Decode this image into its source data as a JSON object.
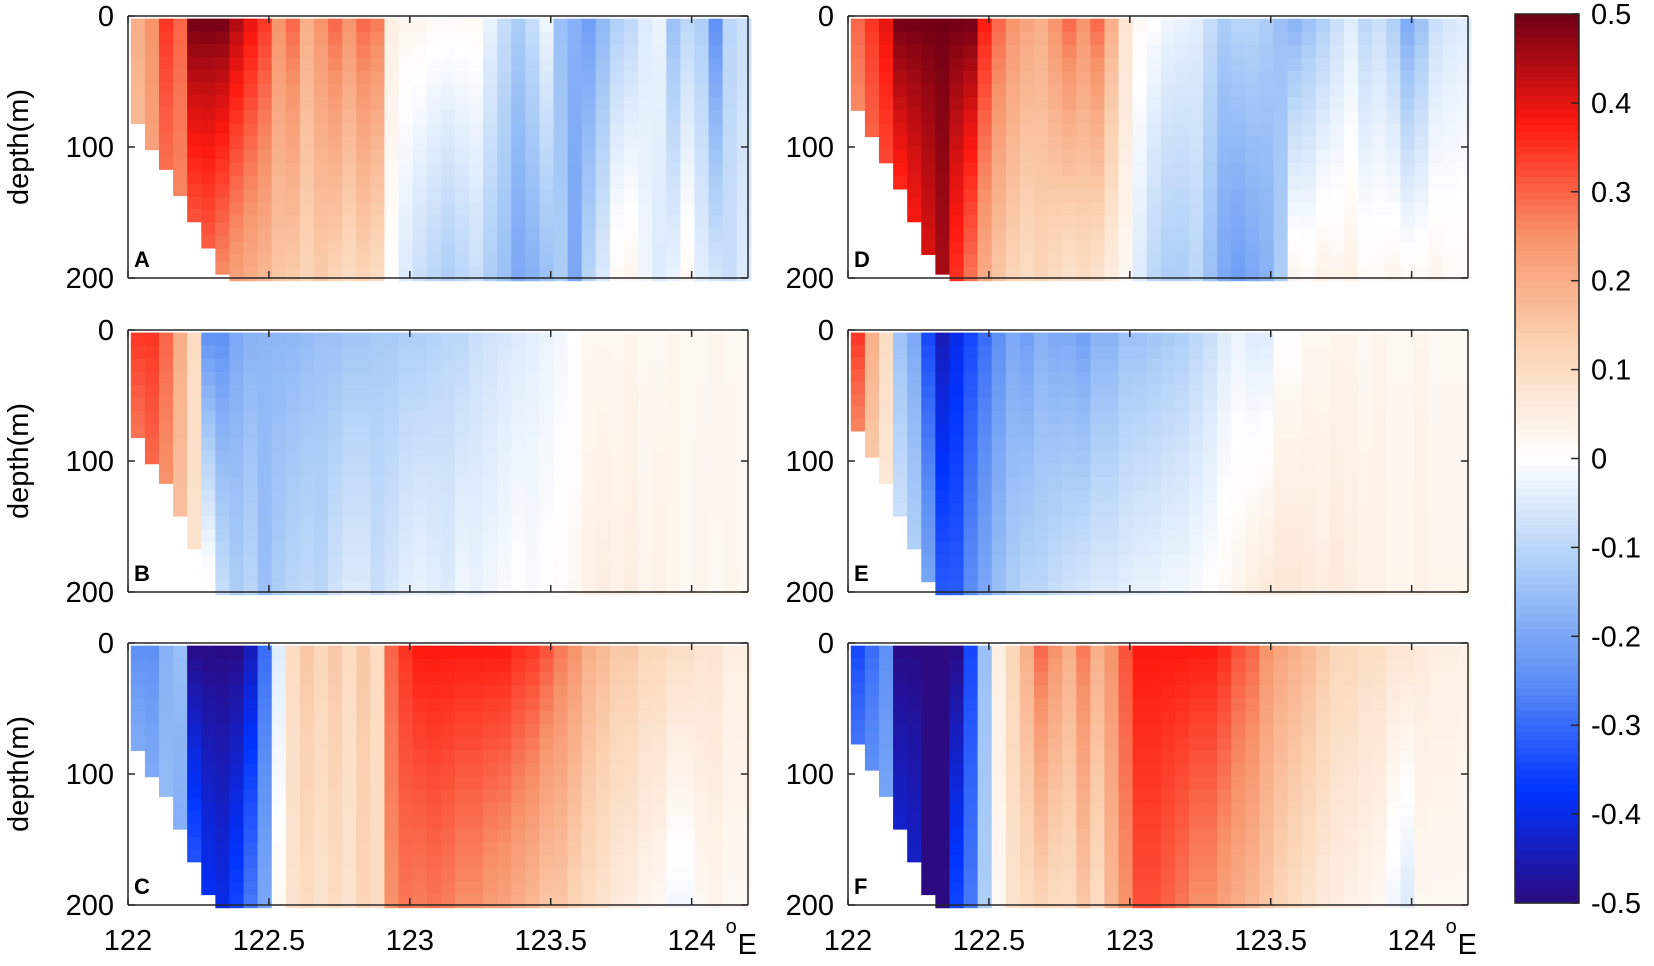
{
  "chart_data": {
    "type": "heatmap",
    "colormap": {
      "stops": [
        "#2b0a82",
        "#0033ff",
        "#5c8ff5",
        "#a9ccf7",
        "#ffffff",
        "#fbd4b4",
        "#f7936a",
        "#ff1a10",
        "#6e0014"
      ],
      "range": [
        -0.5,
        0.5
      ],
      "ticks": [
        0.5,
        0.4,
        0.3,
        0.2,
        0.1,
        0,
        -0.1,
        -0.2,
        -0.3,
        -0.4,
        -0.5
      ],
      "tick_labels": [
        "0.5",
        "0.4",
        "0.3",
        "0.2",
        "0.1",
        "0",
        "-0.1",
        "-0.2",
        "-0.3",
        "-0.4",
        "-0.5"
      ]
    },
    "x_ticks": [
      122,
      122.5,
      123,
      123.5,
      124
    ],
    "x_tick_labels": [
      "122",
      "122.5",
      "123",
      "123.5",
      "124"
    ],
    "x_unit_sup": "o",
    "x_unit": "E",
    "y_ticks": [
      0,
      100,
      200
    ],
    "y_tick_labels": [
      "0",
      "100",
      "200"
    ],
    "ylabel": "depth(m)",
    "xlim": [
      122,
      124.2
    ],
    "ylim": [
      0,
      200
    ],
    "panels": [
      {
        "label": "A",
        "lons": [
          122,
          122.05,
          122.1,
          122.15,
          122.2,
          122.25,
          122.3,
          122.35,
          122.4,
          122.45,
          122.5,
          122.55,
          122.6,
          122.65,
          122.7,
          122.75,
          122.8,
          122.85,
          122.9,
          122.95,
          123,
          123.05,
          123.1,
          123.15,
          123.2,
          123.25,
          123.3,
          123.35,
          123.4,
          123.45,
          123.5,
          123.55,
          123.6,
          123.65,
          123.7,
          123.75,
          123.8,
          123.85,
          123.9,
          123.95,
          124,
          124.05,
          124.1,
          124.15
        ],
        "top": [
          0.2,
          0.25,
          0.35,
          0.3,
          0.5,
          0.5,
          0.5,
          0.45,
          0.4,
          0.35,
          0.25,
          0.3,
          0.2,
          0.25,
          0.3,
          0.25,
          0.3,
          0.28,
          0.05,
          0.03,
          0.03,
          0.02,
          0.02,
          0.02,
          0.02,
          -0.03,
          -0.08,
          -0.12,
          -0.08,
          -0.02,
          -0.15,
          -0.18,
          -0.22,
          -0.17,
          -0.12,
          -0.1,
          -0.05,
          -0.03,
          -0.15,
          -0.1,
          -0.12,
          -0.25,
          -0.1,
          -0.08
        ],
        "bottom": [
          0.15,
          0.2,
          0.25,
          0.25,
          0.27,
          0.28,
          0.25,
          0.22,
          0.2,
          0.18,
          0.15,
          0.14,
          0.12,
          0.14,
          0.12,
          0.1,
          0.12,
          0.1,
          0,
          -0.05,
          -0.08,
          -0.1,
          -0.12,
          -0.1,
          -0.08,
          -0.12,
          -0.15,
          -0.2,
          -0.18,
          -0.15,
          -0.12,
          -0.2,
          -0.1,
          -0.05,
          0.02,
          0.03,
          -0.02,
          -0.05,
          -0.03,
          0.02,
          -0.04,
          -0.06,
          -0.08,
          -0.05
        ],
        "max_depth": [
          80,
          100,
          115,
          135,
          155,
          175,
          195,
          200,
          200,
          200,
          200,
          200,
          200,
          200,
          200,
          200,
          200,
          200,
          200,
          200,
          200,
          200,
          200,
          200,
          200,
          200,
          200,
          200,
          200,
          200,
          200,
          200,
          200,
          200,
          200,
          200,
          200,
          200,
          200,
          200,
          200,
          200,
          200,
          200
        ]
      },
      {
        "label": "B",
        "lons": [
          122,
          122.05,
          122.1,
          122.15,
          122.2,
          122.25,
          122.3,
          122.35,
          122.4,
          122.45,
          122.5,
          122.55,
          122.6,
          122.65,
          122.7,
          122.75,
          122.8,
          122.85,
          122.9,
          122.95,
          123,
          123.05,
          123.1,
          123.15,
          123.2,
          123.25,
          123.3,
          123.35,
          123.4,
          123.45,
          123.5,
          123.55,
          123.6,
          123.65,
          123.7,
          123.75,
          123.8,
          123.85,
          123.9,
          123.95,
          124,
          124.05,
          124.1,
          124.15
        ],
        "top": [
          0.35,
          0.35,
          0.3,
          0.2,
          0.1,
          -0.25,
          -0.25,
          -0.2,
          -0.18,
          -0.17,
          -0.17,
          -0.17,
          -0.16,
          -0.15,
          -0.15,
          -0.14,
          -0.14,
          -0.13,
          -0.13,
          -0.12,
          -0.12,
          -0.11,
          -0.1,
          -0.1,
          -0.08,
          -0.07,
          -0.06,
          -0.05,
          -0.04,
          -0.03,
          -0.02,
          0.0,
          0.02,
          0.02,
          0.02,
          0.03,
          0.02,
          0.02,
          0.03,
          0.02,
          0.02,
          0.03,
          0.02,
          0.02
        ],
        "bottom": [
          0.2,
          0.25,
          0.22,
          0.15,
          0.08,
          0.02,
          -0.08,
          -0.12,
          -0.1,
          -0.15,
          -0.12,
          -0.1,
          -0.09,
          -0.1,
          -0.07,
          -0.05,
          -0.05,
          -0.08,
          -0.06,
          -0.04,
          -0.03,
          -0.04,
          -0.05,
          -0.02,
          -0.03,
          -0.02,
          -0.01,
          0.0,
          -0.01,
          0.0,
          0.01,
          0.02,
          0.04,
          0.05,
          0.04,
          0.05,
          0.03,
          0.04,
          0.03,
          0.02,
          0.03,
          0.02,
          0.03,
          0.02
        ],
        "max_depth": [
          80,
          100,
          115,
          140,
          165,
          190,
          200,
          200,
          200,
          200,
          200,
          200,
          200,
          200,
          200,
          200,
          200,
          200,
          200,
          200,
          200,
          200,
          200,
          200,
          200,
          200,
          200,
          200,
          200,
          200,
          200,
          200,
          200,
          200,
          200,
          200,
          200,
          200,
          200,
          200,
          200,
          200,
          200,
          200
        ]
      },
      {
        "label": "C",
        "lons": [
          122,
          122.05,
          122.1,
          122.15,
          122.2,
          122.25,
          122.3,
          122.35,
          122.4,
          122.45,
          122.5,
          122.55,
          122.6,
          122.65,
          122.7,
          122.75,
          122.8,
          122.85,
          122.9,
          122.95,
          123,
          123.05,
          123.1,
          123.15,
          123.2,
          123.25,
          123.3,
          123.35,
          123.4,
          123.45,
          123.5,
          123.55,
          123.6,
          123.65,
          123.7,
          123.75,
          123.8,
          123.85,
          123.9,
          123.95,
          124,
          124.05,
          124.1,
          124.15
        ],
        "top": [
          -0.25,
          -0.25,
          -0.18,
          -0.15,
          -0.5,
          -0.5,
          -0.5,
          -0.5,
          -0.45,
          -0.3,
          -0.05,
          0.1,
          0.15,
          0.12,
          0.15,
          0.1,
          0.15,
          0.1,
          0.3,
          0.35,
          0.38,
          0.38,
          0.38,
          0.38,
          0.38,
          0.38,
          0.38,
          0.36,
          0.35,
          0.32,
          0.28,
          0.25,
          0.2,
          0.18,
          0.15,
          0.15,
          0.12,
          0.12,
          0.1,
          0.1,
          0.08,
          0.08,
          0.05,
          0.05
        ],
        "bottom": [
          -0.12,
          -0.15,
          -0.15,
          -0.2,
          -0.3,
          -0.38,
          -0.4,
          -0.35,
          -0.28,
          -0.2,
          0.02,
          0.08,
          0.1,
          0.08,
          0.1,
          0.08,
          0.12,
          0.1,
          0.25,
          0.28,
          0.27,
          0.28,
          0.27,
          0.25,
          0.25,
          0.23,
          0.22,
          0.2,
          0.18,
          0.15,
          0.15,
          0.12,
          0.1,
          0.08,
          0.06,
          0.05,
          0.03,
          0.02,
          -0.02,
          -0.02,
          0.02,
          0.03,
          0.02,
          0.02
        ],
        "max_depth": [
          80,
          100,
          115,
          140,
          165,
          190,
          200,
          200,
          200,
          200,
          200,
          200,
          200,
          200,
          200,
          200,
          200,
          200,
          200,
          200,
          200,
          200,
          200,
          200,
          200,
          200,
          200,
          200,
          200,
          200,
          200,
          200,
          200,
          200,
          200,
          200,
          200,
          200,
          200,
          200,
          200,
          200,
          200,
          200
        ]
      },
      {
        "label": "D",
        "lons": [
          122,
          122.05,
          122.1,
          122.15,
          122.2,
          122.25,
          122.3,
          122.35,
          122.4,
          122.45,
          122.5,
          122.55,
          122.6,
          122.65,
          122.7,
          122.75,
          122.8,
          122.85,
          122.9,
          122.95,
          123,
          123.05,
          123.1,
          123.15,
          123.2,
          123.25,
          123.3,
          123.35,
          123.4,
          123.45,
          123.5,
          123.55,
          123.6,
          123.65,
          123.7,
          123.75,
          123.8,
          123.85,
          123.9,
          123.95,
          124,
          124.05,
          124.1,
          124.15
        ],
        "top": [
          0.3,
          0.35,
          0.4,
          0.5,
          0.5,
          0.5,
          0.5,
          0.5,
          0.5,
          0.38,
          0.3,
          0.25,
          0.22,
          0.2,
          0.25,
          0.3,
          0.25,
          0.3,
          0.2,
          0.08,
          0.02,
          0.0,
          -0.02,
          -0.03,
          -0.04,
          -0.08,
          -0.12,
          -0.1,
          -0.1,
          -0.12,
          -0.15,
          -0.18,
          -0.15,
          -0.12,
          -0.08,
          -0.05,
          -0.1,
          -0.08,
          -0.12,
          -0.2,
          -0.15,
          -0.08,
          -0.06,
          -0.05
        ],
        "bottom": [
          0.2,
          0.25,
          0.28,
          0.3,
          0.35,
          0.4,
          0.45,
          0.35,
          0.28,
          0.2,
          0.15,
          0.12,
          0.1,
          0.12,
          0.1,
          0.08,
          0.1,
          0.08,
          0.05,
          0.02,
          -0.05,
          -0.1,
          -0.12,
          -0.12,
          -0.1,
          -0.15,
          -0.2,
          -0.22,
          -0.2,
          -0.18,
          -0.12,
          0.03,
          0.02,
          0.04,
          0.03,
          0.04,
          0.02,
          0.02,
          0.03,
          0.02,
          0.02,
          0.03,
          0.02,
          0.02
        ],
        "max_depth": [
          70,
          90,
          110,
          130,
          155,
          180,
          195,
          200,
          200,
          200,
          200,
          200,
          200,
          200,
          200,
          200,
          200,
          200,
          200,
          200,
          200,
          200,
          200,
          200,
          200,
          200,
          200,
          200,
          200,
          200,
          200,
          200,
          200,
          200,
          200,
          200,
          200,
          200,
          200,
          200,
          200,
          200,
          200,
          200
        ]
      },
      {
        "label": "E",
        "lons": [
          122,
          122.05,
          122.1,
          122.15,
          122.2,
          122.25,
          122.3,
          122.35,
          122.4,
          122.45,
          122.5,
          122.55,
          122.6,
          122.65,
          122.7,
          122.75,
          122.8,
          122.85,
          122.9,
          122.95,
          123,
          123.05,
          123.1,
          123.15,
          123.2,
          123.25,
          123.3,
          123.35,
          123.4,
          123.45,
          123.5,
          123.55,
          123.6,
          123.65,
          123.7,
          123.75,
          123.8,
          123.85,
          123.9,
          123.95,
          124,
          124.05,
          124.1,
          124.15
        ],
        "top": [
          0.35,
          0.2,
          0.1,
          -0.15,
          -0.2,
          -0.35,
          -0.45,
          -0.4,
          -0.35,
          -0.3,
          -0.25,
          -0.2,
          -0.22,
          -0.18,
          -0.2,
          -0.2,
          -0.22,
          -0.18,
          -0.18,
          -0.15,
          -0.15,
          -0.14,
          -0.13,
          -0.12,
          -0.1,
          -0.08,
          -0.05,
          -0.03,
          -0.05,
          -0.05,
          0.0,
          0.0,
          0.02,
          0.02,
          0.03,
          0.03,
          0.02,
          0.03,
          0.02,
          0.02,
          0.03,
          0.02,
          0.02,
          0.02
        ],
        "bottom": [
          0.15,
          0.1,
          0.05,
          -0.05,
          -0.1,
          -0.2,
          -0.32,
          -0.32,
          -0.25,
          -0.2,
          -0.15,
          -0.12,
          -0.1,
          -0.1,
          -0.08,
          -0.07,
          -0.06,
          -0.05,
          -0.05,
          -0.04,
          -0.03,
          -0.03,
          -0.02,
          -0.02,
          -0.01,
          0.0,
          0.02,
          0.03,
          0.05,
          0.06,
          0.07,
          0.07,
          0.06,
          0.05,
          0.06,
          0.05,
          0.04,
          0.04,
          0.03,
          0.03,
          0.04,
          0.03,
          0.03,
          0.03
        ],
        "max_depth": [
          75,
          95,
          115,
          140,
          165,
          190,
          200,
          200,
          200,
          200,
          200,
          200,
          200,
          200,
          200,
          200,
          200,
          200,
          200,
          200,
          200,
          200,
          200,
          200,
          200,
          200,
          200,
          200,
          200,
          200,
          200,
          200,
          200,
          200,
          200,
          200,
          200,
          200,
          200,
          200,
          200,
          200,
          200,
          200
        ]
      },
      {
        "label": "F",
        "lons": [
          122,
          122.05,
          122.1,
          122.15,
          122.2,
          122.25,
          122.3,
          122.35,
          122.4,
          122.45,
          122.5,
          122.55,
          122.6,
          122.65,
          122.7,
          122.75,
          122.8,
          122.85,
          122.9,
          122.95,
          123,
          123.05,
          123.1,
          123.15,
          123.2,
          123.25,
          123.3,
          123.35,
          123.4,
          123.45,
          123.5,
          123.55,
          123.6,
          123.65,
          123.7,
          123.75,
          123.8,
          123.85,
          123.9,
          123.95,
          124,
          124.05,
          124.1,
          124.15
        ],
        "top": [
          -0.35,
          -0.3,
          -0.25,
          -0.5,
          -0.5,
          -0.5,
          -0.5,
          -0.5,
          -0.35,
          -0.15,
          0.05,
          0.12,
          0.2,
          0.3,
          0.25,
          0.2,
          0.28,
          0.2,
          0.25,
          0.32,
          0.38,
          0.38,
          0.38,
          0.38,
          0.38,
          0.38,
          0.36,
          0.32,
          0.3,
          0.25,
          0.22,
          0.2,
          0.18,
          0.15,
          0.12,
          0.12,
          0.1,
          0.1,
          0.08,
          0.08,
          0.06,
          0.05,
          0.05,
          0.04
        ],
        "bottom": [
          -0.2,
          -0.2,
          -0.18,
          -0.4,
          -0.42,
          -0.5,
          -0.5,
          -0.35,
          -0.28,
          -0.12,
          0.02,
          0.08,
          0.1,
          0.12,
          0.1,
          0.1,
          0.15,
          0.1,
          0.18,
          0.25,
          0.32,
          0.32,
          0.3,
          0.28,
          0.25,
          0.25,
          0.22,
          0.2,
          0.18,
          0.15,
          0.12,
          0.1,
          0.08,
          0.06,
          0.05,
          0.04,
          0.03,
          0.02,
          -0.02,
          -0.05,
          0.02,
          0.02,
          0.02,
          0.02
        ],
        "max_depth": [
          75,
          95,
          115,
          140,
          165,
          190,
          200,
          200,
          200,
          200,
          200,
          200,
          200,
          200,
          200,
          200,
          200,
          200,
          200,
          200,
          200,
          200,
          200,
          200,
          200,
          200,
          200,
          200,
          200,
          200,
          200,
          200,
          200,
          200,
          200,
          200,
          200,
          200,
          200,
          200,
          200,
          200,
          200,
          200
        ]
      }
    ]
  }
}
